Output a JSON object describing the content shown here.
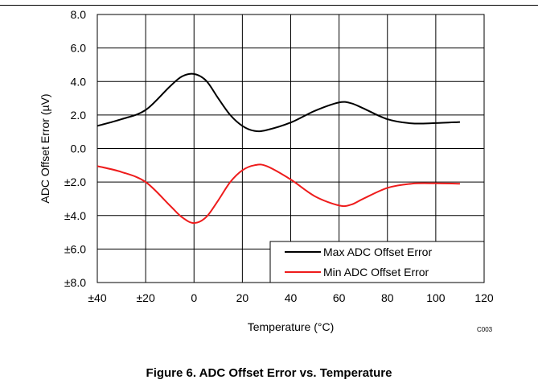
{
  "figure": {
    "caption": "Figure 6. ADC Offset Error vs. Temperature",
    "code": "C003"
  },
  "chart_data": {
    "type": "line",
    "xlabel": "Temperature (°C)",
    "ylabel": "ADC Offset Error (µV)",
    "xlim": [
      -40,
      120
    ],
    "ylim": [
      -8,
      8
    ],
    "x_ticks": [
      -40,
      -20,
      0,
      20,
      40,
      60,
      80,
      100,
      120
    ],
    "x_tick_labels": [
      "±40",
      "±20",
      "0",
      "20",
      "40",
      "60",
      "80",
      "100",
      "120"
    ],
    "y_ticks": [
      8,
      6,
      4,
      2,
      0,
      -2,
      -4,
      -6,
      -8
    ],
    "y_tick_labels": [
      "8.0",
      "6.0",
      "4.0",
      "2.0",
      "0.0",
      "±2.0",
      "±4.0",
      "±6.0",
      "±8.0"
    ],
    "grid": true,
    "legend_position": "bottom-right",
    "series": [
      {
        "name": "Max ADC Offset Error",
        "color": "#000000",
        "x": [
          -40,
          -30,
          -20,
          -10,
          -5,
          0,
          5,
          10,
          15,
          20,
          25,
          30,
          40,
          50,
          60,
          65,
          70,
          80,
          90,
          100,
          110
        ],
        "y": [
          1.35,
          1.75,
          2.3,
          3.7,
          4.3,
          4.45,
          4.05,
          3.0,
          2.0,
          1.35,
          1.05,
          1.1,
          1.55,
          2.25,
          2.75,
          2.7,
          2.4,
          1.75,
          1.5,
          1.52,
          1.58
        ]
      },
      {
        "name": "Min ADC Offset Error",
        "color": "#ee1c1c",
        "x": [
          -40,
          -30,
          -20,
          -10,
          -5,
          0,
          5,
          10,
          15,
          20,
          25,
          30,
          40,
          50,
          60,
          65,
          70,
          80,
          90,
          100,
          110
        ],
        "y": [
          -1.05,
          -1.4,
          -2.0,
          -3.4,
          -4.1,
          -4.45,
          -4.1,
          -3.1,
          -2.0,
          -1.3,
          -1.0,
          -1.05,
          -1.85,
          -2.85,
          -3.4,
          -3.35,
          -3.0,
          -2.35,
          -2.1,
          -2.08,
          -2.1
        ]
      }
    ]
  }
}
